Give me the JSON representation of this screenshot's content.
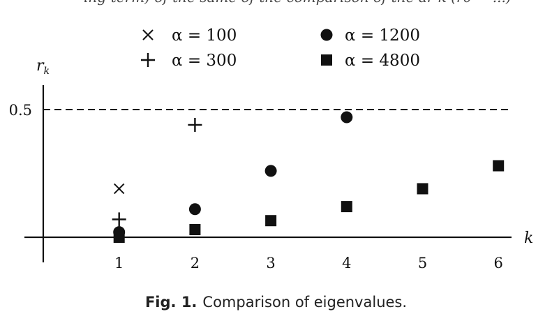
{
  "header_snippet": "ing-term) of the same of the comparison of the ar k (r0 = ...)",
  "chart_data": {
    "type": "scatter",
    "xlabel": "k",
    "ylabel": "r_k",
    "x_ticks": [
      "1",
      "2",
      "3",
      "4",
      "5",
      "6"
    ],
    "y_ticks": [
      "0.5"
    ],
    "xlim": [
      0,
      6.5
    ],
    "ylim": [
      -0.1,
      0.55
    ],
    "reference_line": {
      "y": 0.5,
      "style": "dashed"
    },
    "legend_position": "top",
    "series": [
      {
        "name": "α = 100",
        "marker": "x",
        "points": [
          [
            1,
            0.19
          ]
        ]
      },
      {
        "name": "α = 300",
        "marker": "plus",
        "points": [
          [
            1,
            0.07
          ],
          [
            2,
            0.44
          ]
        ]
      },
      {
        "name": "α = 1200",
        "marker": "circle",
        "points": [
          [
            1,
            0.02
          ],
          [
            2,
            0.11
          ],
          [
            3,
            0.26
          ],
          [
            4,
            0.47
          ]
        ]
      },
      {
        "name": "α = 4800",
        "marker": "square",
        "points": [
          [
            1,
            0.0
          ],
          [
            2,
            0.03
          ],
          [
            3,
            0.065
          ],
          [
            4,
            0.12
          ],
          [
            5,
            0.19
          ],
          [
            6,
            0.28
          ]
        ]
      }
    ]
  },
  "caption": {
    "label": "Fig. 1.",
    "text": "Comparison of eigenvalues."
  }
}
